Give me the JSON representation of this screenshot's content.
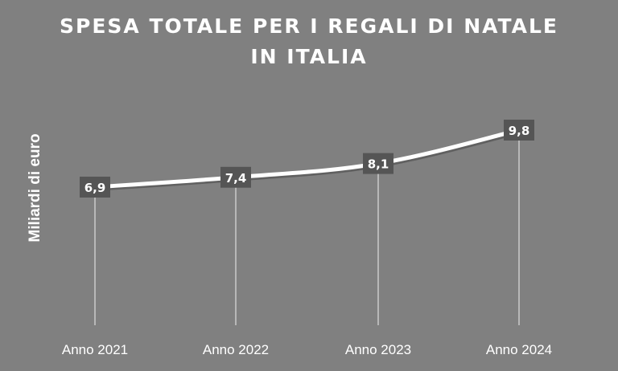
{
  "chart_data": {
    "type": "line",
    "title_line1": "SPESA  TOTALE PER I REGALI DI NATALE",
    "title_line2": "IN ITALIA",
    "ylabel": "Miliardi di euro",
    "xlabel": "",
    "categories": [
      "Anno 2021",
      "Anno 2022",
      "Anno 2023",
      "Anno 2024"
    ],
    "series": [
      {
        "values": [
          6.9,
          7.4,
          8.1,
          9.8
        ],
        "labels": [
          "6,9",
          "7,4",
          "8,1",
          "9,8"
        ]
      }
    ],
    "ylim": [
      0,
      12
    ],
    "grid": false,
    "legend": "none",
    "colors": {
      "background": "#808080",
      "line": "#ffffff",
      "label_box": "#555555",
      "drop_line": "#dddddd",
      "text": "#ffffff"
    }
  }
}
